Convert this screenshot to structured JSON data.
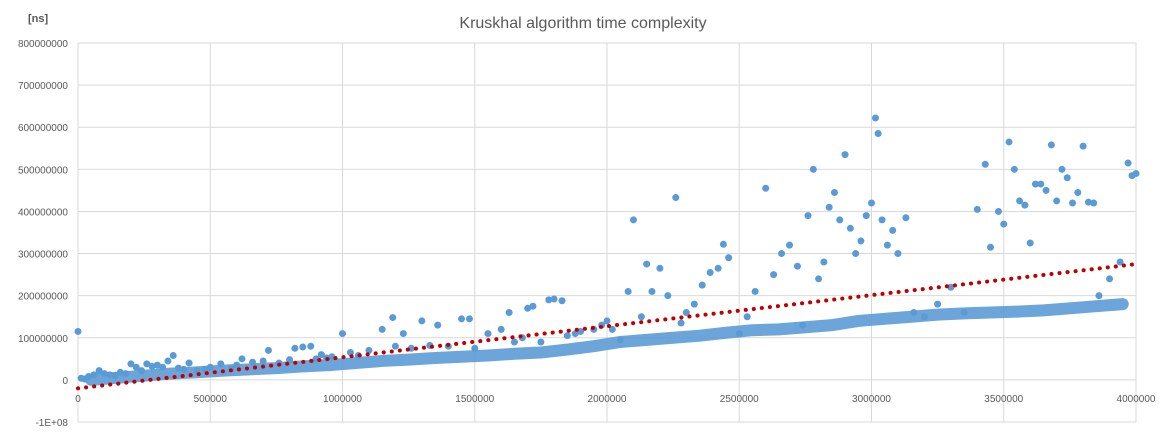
{
  "chart_data": {
    "type": "scatter",
    "title": "Kruskhal algorithm time complexity",
    "ylabel": "[ns]",
    "xlabel": "",
    "xlim": [
      0,
      4000000
    ],
    "ylim": [
      -100000000,
      800000000
    ],
    "x_ticks": [
      0,
      500000,
      1000000,
      1500000,
      2000000,
      2500000,
      3000000,
      3500000,
      4000000
    ],
    "x_tick_labels": [
      "0",
      "500000",
      "1000000",
      "1500000",
      "2000000",
      "2500000",
      "3000000",
      "3500000",
      "4000000"
    ],
    "y_ticks": [
      -100000000,
      0,
      100000000,
      200000000,
      300000000,
      400000000,
      500000000,
      600000000,
      700000000,
      800000000
    ],
    "y_tick_labels": [
      "-1E+08",
      "0",
      "100000000",
      "200000000",
      "300000000",
      "400000000",
      "500000000",
      "600000000",
      "700000000",
      "800000000"
    ],
    "grid": true,
    "legend": "none",
    "colors": {
      "points": "#5b9bd5",
      "trend": "#c00000",
      "grid": "#d9d9d9",
      "text": "#595959"
    },
    "trendline": {
      "type": "linear",
      "style": "dotted",
      "x": [
        0,
        4000000
      ],
      "y": [
        -20000000,
        275000000
      ]
    },
    "series": [
      {
        "points": [
          [
            0,
            115000000
          ],
          [
            12000,
            4000000
          ],
          [
            25000,
            2000000
          ],
          [
            40000,
            8000000
          ],
          [
            60000,
            12000000
          ],
          [
            80000,
            22000000
          ],
          [
            100000,
            15000000
          ],
          [
            120000,
            12000000
          ],
          [
            140000,
            10000000
          ],
          [
            160000,
            18000000
          ],
          [
            180000,
            15000000
          ],
          [
            200000,
            38000000
          ],
          [
            220000,
            30000000
          ],
          [
            240000,
            22000000
          ],
          [
            260000,
            38000000
          ],
          [
            280000,
            32000000
          ],
          [
            300000,
            35000000
          ],
          [
            320000,
            30000000
          ],
          [
            340000,
            45000000
          ],
          [
            360000,
            58000000
          ],
          [
            380000,
            28000000
          ],
          [
            400000,
            25000000
          ],
          [
            420000,
            40000000
          ],
          [
            450000,
            22000000
          ],
          [
            480000,
            25000000
          ],
          [
            500000,
            30000000
          ],
          [
            540000,
            38000000
          ],
          [
            580000,
            28000000
          ],
          [
            600000,
            35000000
          ],
          [
            620000,
            50000000
          ],
          [
            660000,
            42000000
          ],
          [
            700000,
            45000000
          ],
          [
            720000,
            70000000
          ],
          [
            760000,
            40000000
          ],
          [
            800000,
            48000000
          ],
          [
            820000,
            75000000
          ],
          [
            850000,
            78000000
          ],
          [
            880000,
            80000000
          ],
          [
            900000,
            50000000
          ],
          [
            920000,
            60000000
          ],
          [
            940000,
            52000000
          ],
          [
            960000,
            55000000
          ],
          [
            1000000,
            110000000
          ],
          [
            1030000,
            65000000
          ],
          [
            1060000,
            58000000
          ],
          [
            1100000,
            70000000
          ],
          [
            1150000,
            120000000
          ],
          [
            1190000,
            148000000
          ],
          [
            1200000,
            80000000
          ],
          [
            1230000,
            110000000
          ],
          [
            1260000,
            75000000
          ],
          [
            1300000,
            140000000
          ],
          [
            1330000,
            82000000
          ],
          [
            1360000,
            130000000
          ],
          [
            1400000,
            80000000
          ],
          [
            1450000,
            145000000
          ],
          [
            1480000,
            145000000
          ],
          [
            1500000,
            75000000
          ],
          [
            1550000,
            110000000
          ],
          [
            1600000,
            120000000
          ],
          [
            1630000,
            160000000
          ],
          [
            1650000,
            90000000
          ],
          [
            1680000,
            100000000
          ],
          [
            1700000,
            170000000
          ],
          [
            1720000,
            175000000
          ],
          [
            1750000,
            90000000
          ],
          [
            1780000,
            190000000
          ],
          [
            1800000,
            192000000
          ],
          [
            1830000,
            188000000
          ],
          [
            1850000,
            105000000
          ],
          [
            1880000,
            110000000
          ],
          [
            1900000,
            115000000
          ],
          [
            1950000,
            120000000
          ],
          [
            1980000,
            130000000
          ],
          [
            2000000,
            140000000
          ],
          [
            2020000,
            120000000
          ],
          [
            2050000,
            95000000
          ],
          [
            2080000,
            210000000
          ],
          [
            2100000,
            380000000
          ],
          [
            2130000,
            150000000
          ],
          [
            2150000,
            275000000
          ],
          [
            2170000,
            210000000
          ],
          [
            2200000,
            265000000
          ],
          [
            2230000,
            200000000
          ],
          [
            2260000,
            433000000
          ],
          [
            2280000,
            135000000
          ],
          [
            2300000,
            160000000
          ],
          [
            2330000,
            180000000
          ],
          [
            2360000,
            225000000
          ],
          [
            2390000,
            255000000
          ],
          [
            2420000,
            265000000
          ],
          [
            2440000,
            322000000
          ],
          [
            2460000,
            290000000
          ],
          [
            2500000,
            110000000
          ],
          [
            2530000,
            150000000
          ],
          [
            2560000,
            210000000
          ],
          [
            2600000,
            455000000
          ],
          [
            2630000,
            250000000
          ],
          [
            2660000,
            300000000
          ],
          [
            2690000,
            320000000
          ],
          [
            2720000,
            270000000
          ],
          [
            2740000,
            130000000
          ],
          [
            2760000,
            390000000
          ],
          [
            2780000,
            500000000
          ],
          [
            2800000,
            240000000
          ],
          [
            2820000,
            280000000
          ],
          [
            2840000,
            410000000
          ],
          [
            2860000,
            445000000
          ],
          [
            2880000,
            380000000
          ],
          [
            2900000,
            535000000
          ],
          [
            2920000,
            360000000
          ],
          [
            2940000,
            300000000
          ],
          [
            2960000,
            330000000
          ],
          [
            2980000,
            390000000
          ],
          [
            3000000,
            420000000
          ],
          [
            3015000,
            622000000
          ],
          [
            3025000,
            585000000
          ],
          [
            3040000,
            380000000
          ],
          [
            3060000,
            320000000
          ],
          [
            3080000,
            355000000
          ],
          [
            3100000,
            300000000
          ],
          [
            3130000,
            385000000
          ],
          [
            3160000,
            160000000
          ],
          [
            3200000,
            150000000
          ],
          [
            3250000,
            180000000
          ],
          [
            3300000,
            220000000
          ],
          [
            3350000,
            160000000
          ],
          [
            3400000,
            405000000
          ],
          [
            3430000,
            512000000
          ],
          [
            3450000,
            315000000
          ],
          [
            3480000,
            400000000
          ],
          [
            3500000,
            370000000
          ],
          [
            3520000,
            565000000
          ],
          [
            3540000,
            500000000
          ],
          [
            3560000,
            425000000
          ],
          [
            3580000,
            415000000
          ],
          [
            3600000,
            325000000
          ],
          [
            3620000,
            465000000
          ],
          [
            3640000,
            465000000
          ],
          [
            3660000,
            450000000
          ],
          [
            3680000,
            558000000
          ],
          [
            3700000,
            425000000
          ],
          [
            3720000,
            500000000
          ],
          [
            3740000,
            480000000
          ],
          [
            3760000,
            420000000
          ],
          [
            3780000,
            445000000
          ],
          [
            3800000,
            555000000
          ],
          [
            3820000,
            422000000
          ],
          [
            3840000,
            420000000
          ],
          [
            3860000,
            200000000
          ],
          [
            3900000,
            240000000
          ],
          [
            3940000,
            280000000
          ],
          [
            3970000,
            515000000
          ],
          [
            3985000,
            485000000
          ],
          [
            4000000,
            490000000
          ]
        ],
        "band_points": [
          [
            50000,
            0
          ],
          [
            150000,
            5000000
          ],
          [
            250000,
            10000000
          ],
          [
            350000,
            15000000
          ],
          [
            450000,
            18000000
          ],
          [
            550000,
            22000000
          ],
          [
            650000,
            25000000
          ],
          [
            750000,
            28000000
          ],
          [
            850000,
            32000000
          ],
          [
            950000,
            35000000
          ],
          [
            1050000,
            40000000
          ],
          [
            1150000,
            45000000
          ],
          [
            1250000,
            48000000
          ],
          [
            1350000,
            52000000
          ],
          [
            1450000,
            55000000
          ],
          [
            1550000,
            58000000
          ],
          [
            1650000,
            62000000
          ],
          [
            1750000,
            65000000
          ],
          [
            1850000,
            72000000
          ],
          [
            1950000,
            80000000
          ],
          [
            2050000,
            90000000
          ],
          [
            2150000,
            95000000
          ],
          [
            2250000,
            100000000
          ],
          [
            2350000,
            105000000
          ],
          [
            2450000,
            112000000
          ],
          [
            2550000,
            118000000
          ],
          [
            2650000,
            120000000
          ],
          [
            2750000,
            125000000
          ],
          [
            2850000,
            130000000
          ],
          [
            2950000,
            140000000
          ],
          [
            3050000,
            145000000
          ],
          [
            3150000,
            150000000
          ],
          [
            3250000,
            155000000
          ],
          [
            3350000,
            158000000
          ],
          [
            3450000,
            160000000
          ],
          [
            3550000,
            162000000
          ],
          [
            3650000,
            165000000
          ],
          [
            3750000,
            170000000
          ],
          [
            3850000,
            175000000
          ],
          [
            3950000,
            180000000
          ]
        ]
      }
    ]
  }
}
